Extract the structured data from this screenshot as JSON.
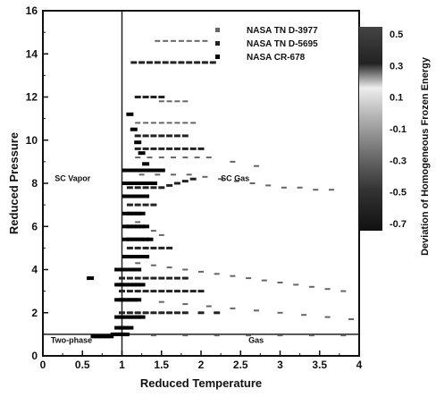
{
  "chart_data": {
    "type": "scatter",
    "title": "",
    "xlabel": "Reduced Temperature",
    "ylabel": "Reduced Pressure",
    "xlim": [
      0,
      4
    ],
    "ylim": [
      0,
      16
    ],
    "x_ticks": [
      "0",
      "0.5",
      "1",
      "1.5",
      "2",
      "2.5",
      "3",
      "3.5",
      "4"
    ],
    "y_ticks": [
      "0",
      "2",
      "4",
      "6",
      "8",
      "10",
      "12",
      "14",
      "16"
    ],
    "legend_position": "top-right",
    "series": [
      {
        "name": "NASA TN D-3977",
        "points": [
          [
            1.45,
            14.6
          ],
          [
            1.55,
            14.6
          ],
          [
            1.65,
            14.6
          ],
          [
            1.75,
            14.6
          ],
          [
            1.85,
            14.6
          ],
          [
            1.95,
            14.6
          ],
          [
            2.05,
            14.6
          ],
          [
            1.5,
            11.8
          ],
          [
            1.6,
            11.8
          ],
          [
            1.7,
            11.8
          ],
          [
            1.8,
            11.8
          ],
          [
            1.2,
            10.8
          ],
          [
            1.3,
            10.8
          ],
          [
            1.4,
            10.8
          ],
          [
            1.5,
            10.8
          ],
          [
            1.6,
            10.8
          ],
          [
            1.7,
            10.8
          ],
          [
            1.8,
            10.8
          ],
          [
            1.9,
            10.8
          ],
          [
            1.2,
            9.2
          ],
          [
            1.35,
            9.2
          ],
          [
            1.5,
            9.2
          ],
          [
            1.65,
            9.2
          ],
          [
            1.8,
            9.2
          ],
          [
            1.95,
            9.2
          ],
          [
            2.1,
            9.2
          ],
          [
            2.4,
            9.0
          ],
          [
            2.7,
            8.8
          ],
          [
            1.25,
            8.4
          ],
          [
            1.45,
            8.4
          ],
          [
            1.65,
            8.4
          ],
          [
            1.85,
            8.4
          ],
          [
            2.05,
            8.3
          ],
          [
            2.25,
            8.2
          ],
          [
            2.45,
            8.1
          ],
          [
            2.65,
            8.0
          ],
          [
            2.85,
            7.9
          ],
          [
            3.05,
            7.8
          ],
          [
            3.25,
            7.8
          ],
          [
            3.45,
            7.7
          ],
          [
            3.65,
            7.7
          ],
          [
            1.2,
            6.2
          ],
          [
            1.3,
            6.0
          ],
          [
            1.4,
            5.8
          ],
          [
            1.5,
            5.6
          ],
          [
            1.2,
            4.3
          ],
          [
            1.4,
            4.2
          ],
          [
            1.6,
            4.1
          ],
          [
            1.8,
            4.0
          ],
          [
            2.0,
            3.9
          ],
          [
            2.2,
            3.8
          ],
          [
            2.4,
            3.7
          ],
          [
            2.6,
            3.6
          ],
          [
            2.8,
            3.5
          ],
          [
            3.0,
            3.4
          ],
          [
            3.2,
            3.3
          ],
          [
            3.4,
            3.2
          ],
          [
            3.6,
            3.1
          ],
          [
            3.8,
            3.0
          ],
          [
            1.2,
            2.6
          ],
          [
            1.5,
            2.5
          ],
          [
            1.8,
            2.4
          ],
          [
            2.1,
            2.3
          ],
          [
            2.4,
            2.2
          ],
          [
            2.7,
            2.1
          ],
          [
            3.0,
            2.0
          ],
          [
            3.3,
            1.9
          ],
          [
            3.6,
            1.8
          ],
          [
            3.9,
            1.7
          ],
          [
            1.05,
            0.95
          ],
          [
            1.4,
            0.95
          ],
          [
            1.8,
            0.95
          ],
          [
            2.2,
            0.95
          ],
          [
            2.6,
            0.95
          ],
          [
            3.0,
            0.95
          ],
          [
            3.4,
            0.95
          ],
          [
            3.8,
            0.95
          ]
        ]
      },
      {
        "name": "NASA TN D-5695",
        "points": [
          [
            1.15,
            13.6
          ],
          [
            1.25,
            13.6
          ],
          [
            1.35,
            13.6
          ],
          [
            1.45,
            13.6
          ],
          [
            1.55,
            13.6
          ],
          [
            1.65,
            13.6
          ],
          [
            1.75,
            13.6
          ],
          [
            1.85,
            13.6
          ],
          [
            1.95,
            13.6
          ],
          [
            2.05,
            13.6
          ],
          [
            2.15,
            13.6
          ],
          [
            1.2,
            12.0
          ],
          [
            1.3,
            12.0
          ],
          [
            1.4,
            12.0
          ],
          [
            1.5,
            12.0
          ],
          [
            1.2,
            10.2
          ],
          [
            1.3,
            10.2
          ],
          [
            1.4,
            10.2
          ],
          [
            1.5,
            10.2
          ],
          [
            1.6,
            10.2
          ],
          [
            1.7,
            10.2
          ],
          [
            1.8,
            10.2
          ],
          [
            1.2,
            9.6
          ],
          [
            1.3,
            9.6
          ],
          [
            1.4,
            9.6
          ],
          [
            1.5,
            9.6
          ],
          [
            1.6,
            9.6
          ],
          [
            1.7,
            9.6
          ],
          [
            1.8,
            9.6
          ],
          [
            1.9,
            9.6
          ],
          [
            2.0,
            9.6
          ],
          [
            1.1,
            7.8
          ],
          [
            1.2,
            7.8
          ],
          [
            1.3,
            7.8
          ],
          [
            1.4,
            7.8
          ],
          [
            1.5,
            7.8
          ],
          [
            1.6,
            7.9
          ],
          [
            1.7,
            8.0
          ],
          [
            1.8,
            8.1
          ],
          [
            1.9,
            8.2
          ],
          [
            1.1,
            7.0
          ],
          [
            1.2,
            7.0
          ],
          [
            1.3,
            7.0
          ],
          [
            1.4,
            7.0
          ],
          [
            1.1,
            5.0
          ],
          [
            1.2,
            5.0
          ],
          [
            1.3,
            5.0
          ],
          [
            1.4,
            5.0
          ],
          [
            1.5,
            5.0
          ],
          [
            1.6,
            5.0
          ],
          [
            1.0,
            3.6
          ],
          [
            1.1,
            3.6
          ],
          [
            1.2,
            3.6
          ],
          [
            1.3,
            3.6
          ],
          [
            1.4,
            3.6
          ],
          [
            1.5,
            3.6
          ],
          [
            1.6,
            3.6
          ],
          [
            1.7,
            3.6
          ],
          [
            1.8,
            3.6
          ],
          [
            1.0,
            3.0
          ],
          [
            1.1,
            3.0
          ],
          [
            1.2,
            3.0
          ],
          [
            1.3,
            3.0
          ],
          [
            1.4,
            3.0
          ],
          [
            1.5,
            3.0
          ],
          [
            1.6,
            3.0
          ],
          [
            1.7,
            3.0
          ],
          [
            1.8,
            3.0
          ],
          [
            1.9,
            3.0
          ],
          [
            2.0,
            3.0
          ],
          [
            1.0,
            2.0
          ],
          [
            1.1,
            2.0
          ],
          [
            1.2,
            2.0
          ],
          [
            1.3,
            2.0
          ],
          [
            1.4,
            2.0
          ],
          [
            1.5,
            2.0
          ],
          [
            1.6,
            2.0
          ],
          [
            1.7,
            2.0
          ],
          [
            1.8,
            2.0
          ],
          [
            2.0,
            2.0
          ],
          [
            2.2,
            2.0
          ]
        ]
      },
      {
        "name": "NASA CR-678",
        "points": [
          [
            1.1,
            11.2
          ],
          [
            1.15,
            10.5
          ],
          [
            1.2,
            9.9
          ],
          [
            1.25,
            9.4
          ],
          [
            1.3,
            8.9
          ],
          [
            1.05,
            8.6
          ],
          [
            1.1,
            8.6
          ],
          [
            1.15,
            8.6
          ],
          [
            1.2,
            8.6
          ],
          [
            1.25,
            8.6
          ],
          [
            1.3,
            8.6
          ],
          [
            1.35,
            8.6
          ],
          [
            1.4,
            8.6
          ],
          [
            1.45,
            8.6
          ],
          [
            1.5,
            8.6
          ],
          [
            1.05,
            8.0
          ],
          [
            1.1,
            8.0
          ],
          [
            1.15,
            8.0
          ],
          [
            1.2,
            8.0
          ],
          [
            1.25,
            8.0
          ],
          [
            1.3,
            8.0
          ],
          [
            1.35,
            8.0
          ],
          [
            1.4,
            8.0
          ],
          [
            1.05,
            7.4
          ],
          [
            1.1,
            7.4
          ],
          [
            1.15,
            7.4
          ],
          [
            1.2,
            7.4
          ],
          [
            1.25,
            7.4
          ],
          [
            1.3,
            7.4
          ],
          [
            1.05,
            6.6
          ],
          [
            1.1,
            6.6
          ],
          [
            1.15,
            6.6
          ],
          [
            1.2,
            6.6
          ],
          [
            1.25,
            6.6
          ],
          [
            1.05,
            6.0
          ],
          [
            1.1,
            6.0
          ],
          [
            1.15,
            6.0
          ],
          [
            1.2,
            6.0
          ],
          [
            1.25,
            6.0
          ],
          [
            1.3,
            6.0
          ],
          [
            1.05,
            5.4
          ],
          [
            1.1,
            5.4
          ],
          [
            1.15,
            5.4
          ],
          [
            1.2,
            5.4
          ],
          [
            1.25,
            5.4
          ],
          [
            1.3,
            5.4
          ],
          [
            1.35,
            5.4
          ],
          [
            1.05,
            4.6
          ],
          [
            1.1,
            4.6
          ],
          [
            1.15,
            4.6
          ],
          [
            1.2,
            4.6
          ],
          [
            1.25,
            4.6
          ],
          [
            1.3,
            4.6
          ],
          [
            0.95,
            4.0
          ],
          [
            1.0,
            4.0
          ],
          [
            1.05,
            4.0
          ],
          [
            1.1,
            4.0
          ],
          [
            1.15,
            4.0
          ],
          [
            1.2,
            4.0
          ],
          [
            0.95,
            3.3
          ],
          [
            1.0,
            3.3
          ],
          [
            1.05,
            3.3
          ],
          [
            1.1,
            3.3
          ],
          [
            1.15,
            3.3
          ],
          [
            1.2,
            3.3
          ],
          [
            1.25,
            3.3
          ],
          [
            0.95,
            2.6
          ],
          [
            1.0,
            2.6
          ],
          [
            1.05,
            2.6
          ],
          [
            1.1,
            2.6
          ],
          [
            1.15,
            2.6
          ],
          [
            1.2,
            2.6
          ],
          [
            0.95,
            1.8
          ],
          [
            1.0,
            1.8
          ],
          [
            1.05,
            1.8
          ],
          [
            1.1,
            1.8
          ],
          [
            1.15,
            1.8
          ],
          [
            1.2,
            1.8
          ],
          [
            1.25,
            1.8
          ],
          [
            0.95,
            1.3
          ],
          [
            1.0,
            1.3
          ],
          [
            1.05,
            1.3
          ],
          [
            1.1,
            1.3
          ],
          [
            0.9,
            1.0
          ],
          [
            0.95,
            1.0
          ],
          [
            1.0,
            1.0
          ],
          [
            1.05,
            1.0
          ],
          [
            0.6,
            3.6
          ],
          [
            0.65,
            0.9
          ],
          [
            0.7,
            0.9
          ],
          [
            0.75,
            0.9
          ],
          [
            0.8,
            0.9
          ],
          [
            0.85,
            0.9
          ]
        ]
      }
    ],
    "annotations": [
      {
        "text": "SC Vapor",
        "x": 0.15,
        "y": 8.1
      },
      {
        "text": "SC Gas",
        "x": 2.25,
        "y": 8.1
      },
      {
        "text": "Two-phase",
        "x": 0.1,
        "y": 0.6
      },
      {
        "text": "Gas",
        "x": 2.6,
        "y": 0.6
      }
    ],
    "reference_lines": {
      "vertical_x": 1,
      "horizontal_y": 1
    },
    "colorbar": {
      "label": "Deviation of Homogeneous Frozen Energy",
      "ticks": [
        "0.5",
        "0.3",
        "0.1",
        "-0.1",
        "-0.3",
        "-0.5",
        "-0.7"
      ]
    },
    "grid": false
  }
}
